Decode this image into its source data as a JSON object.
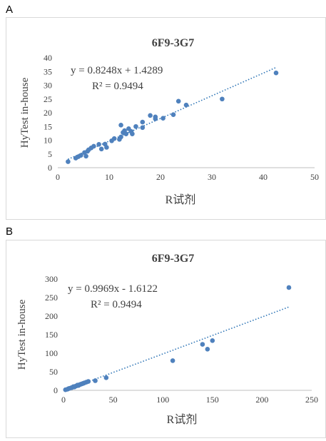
{
  "panels": [
    {
      "letter": "A"
    },
    {
      "letter": "B"
    }
  ],
  "colors": {
    "point": "#4f81bd",
    "trend": "#2e75b6",
    "axis": "#bfbfbf",
    "text": "#404040"
  },
  "chart_data": [
    {
      "type": "scatter",
      "title": "6F9-3G7",
      "xlabel": "R试剂",
      "ylabel": "HyTest in-house",
      "xlim": [
        0,
        50
      ],
      "ylim": [
        0,
        40
      ],
      "xticks": [
        0,
        10,
        20,
        30,
        40,
        50
      ],
      "yticks": [
        0,
        5,
        10,
        15,
        20,
        25,
        30,
        35,
        40
      ],
      "grid": false,
      "equation": "y = 0.8248x + 1.4289",
      "r2": "R² = 0.9494",
      "trendline": {
        "slope": 0.8248,
        "intercept": 1.4289,
        "x_range": [
          2,
          42.5
        ]
      },
      "points": [
        [
          2,
          2.2
        ],
        [
          3.5,
          3.5
        ],
        [
          4,
          4
        ],
        [
          4.5,
          4.5
        ],
        [
          5.2,
          5.5
        ],
        [
          5.5,
          4.2
        ],
        [
          5.8,
          6
        ],
        [
          6,
          6.5
        ],
        [
          6.5,
          7.2
        ],
        [
          7,
          7.8
        ],
        [
          8,
          8.5
        ],
        [
          8.5,
          6.8
        ],
        [
          9.2,
          8.6
        ],
        [
          9.5,
          7.4
        ],
        [
          10.5,
          9.8
        ],
        [
          11,
          10.6
        ],
        [
          12,
          10.3
        ],
        [
          12.3,
          11.2
        ],
        [
          12.3,
          15.5
        ],
        [
          12.7,
          12.8
        ],
        [
          13,
          13.5
        ],
        [
          13.3,
          12.3
        ],
        [
          13.8,
          14.2
        ],
        [
          14.3,
          13.2
        ],
        [
          14.5,
          12.3
        ],
        [
          15.2,
          15
        ],
        [
          16.5,
          16.6
        ],
        [
          16.5,
          14.6
        ],
        [
          18,
          19
        ],
        [
          19,
          18.5
        ],
        [
          19,
          17.8
        ],
        [
          20.5,
          18
        ],
        [
          22.5,
          19.3
        ],
        [
          23.5,
          24.2
        ],
        [
          25,
          22.8
        ],
        [
          32,
          25
        ],
        [
          42.5,
          34.5
        ]
      ]
    },
    {
      "type": "scatter",
      "title": "6F9-3G7",
      "xlabel": "R试剂",
      "ylabel": "HyTest in-house",
      "xlim": [
        0,
        250
      ],
      "ylim": [
        0,
        300
      ],
      "xticks": [
        0,
        50,
        100,
        150,
        200,
        250
      ],
      "yticks": [
        0,
        50,
        100,
        150,
        200,
        250,
        300
      ],
      "grid": false,
      "equation": "y = 0.9969x - 1.6122",
      "r2": "R² = 0.9494",
      "trendline": {
        "slope": 0.9969,
        "intercept": -1.6122,
        "x_range": [
          2,
          227
        ]
      },
      "points": [
        [
          2,
          1.5
        ],
        [
          4,
          3
        ],
        [
          5,
          4.5
        ],
        [
          6,
          5.5
        ],
        [
          8,
          7
        ],
        [
          9,
          8
        ],
        [
          10,
          10
        ],
        [
          11,
          9
        ],
        [
          12,
          11
        ],
        [
          13,
          12
        ],
        [
          14,
          14
        ],
        [
          15,
          13
        ],
        [
          16,
          15
        ],
        [
          17,
          16
        ],
        [
          18,
          17
        ],
        [
          19,
          18
        ],
        [
          20,
          19
        ],
        [
          21,
          20
        ],
        [
          23,
          22
        ],
        [
          25,
          24
        ],
        [
          32,
          26
        ],
        [
          43,
          34
        ],
        [
          110,
          80
        ],
        [
          140,
          124
        ],
        [
          145,
          111
        ],
        [
          150,
          134
        ],
        [
          227,
          277
        ]
      ]
    }
  ]
}
